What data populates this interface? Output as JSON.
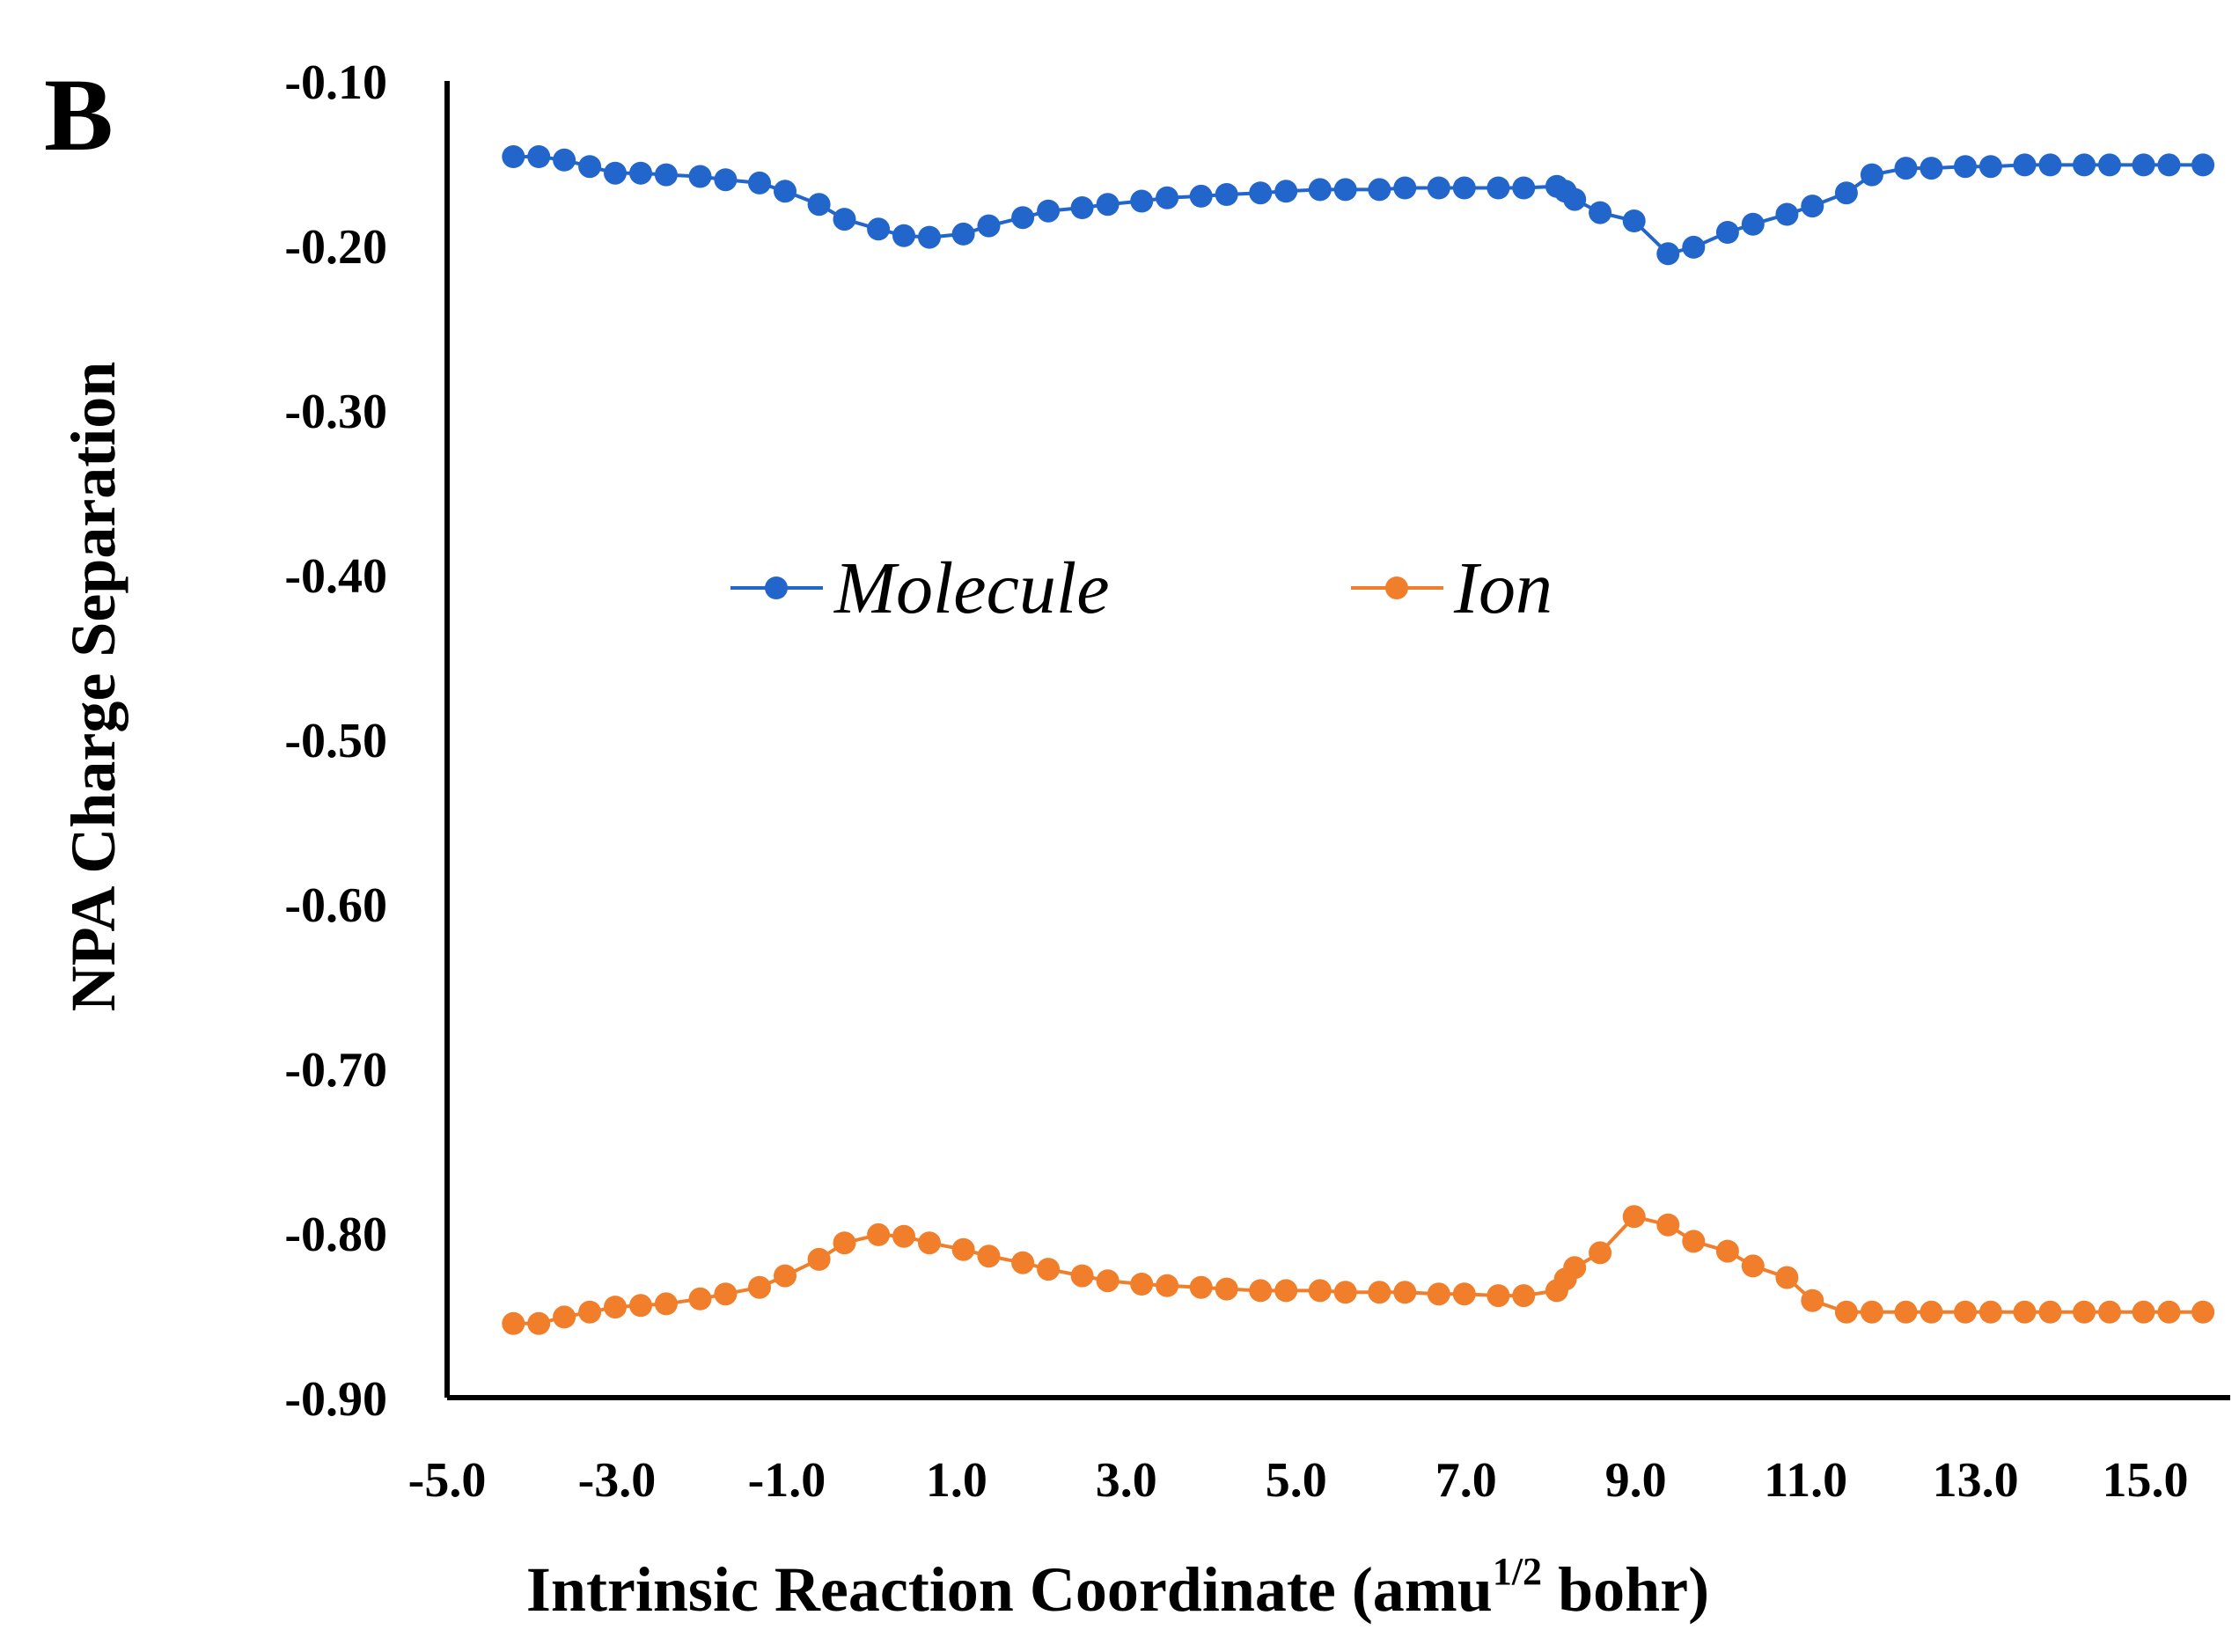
{
  "panel_label": "B",
  "colors": {
    "molecule": "#2266CC",
    "ion": "#F07E2A",
    "axis": "#000000"
  },
  "chart_data": {
    "type": "line",
    "title": "",
    "xlabel_main": "Intrinsic  Reaction Coordinate  (amu",
    "xlabel_sup": "1/2",
    "xlabel_tail": " bohr)",
    "ylabel": "NPA Charge Separation",
    "xlim": [
      -5.0,
      16.0
    ],
    "ylim": [
      -0.9,
      -0.1
    ],
    "x_ticks": [
      -5.0,
      -3.0,
      -1.0,
      1.0,
      3.0,
      5.0,
      7.0,
      9.0,
      11.0,
      13.0,
      15.0
    ],
    "x_tick_labels": [
      "-5.0",
      "-3.0",
      "-1.0",
      "1.0",
      "3.0",
      "5.0",
      "7.0",
      "9.0",
      "11.0",
      "13.0",
      "15.0"
    ],
    "y_ticks": [
      -0.1,
      -0.2,
      -0.3,
      -0.4,
      -0.5,
      -0.6,
      -0.7,
      -0.8,
      -0.9
    ],
    "y_tick_labels": [
      "-0.10",
      "-0.20",
      "-0.30",
      "-0.40",
      "-0.50",
      "-0.60",
      "-0.70",
      "-0.80",
      "-0.90"
    ],
    "legend_position": "center",
    "series": [
      {
        "name": "Molecule",
        "color": "#2266CC",
        "x": [
          -4.22,
          -3.92,
          -3.62,
          -3.32,
          -3.02,
          -2.72,
          -2.42,
          -2.02,
          -1.72,
          -1.32,
          -1.02,
          -0.62,
          -0.32,
          0.08,
          0.38,
          0.68,
          1.08,
          1.38,
          1.78,
          2.08,
          2.48,
          2.78,
          3.18,
          3.48,
          3.88,
          4.18,
          4.58,
          4.88,
          5.28,
          5.58,
          5.98,
          6.28,
          6.68,
          6.98,
          7.38,
          7.68,
          8.07,
          8.17,
          8.28,
          8.58,
          8.98,
          9.38,
          9.68,
          10.08,
          10.38,
          10.78,
          11.08,
          11.48,
          11.78,
          12.18,
          12.48,
          12.88,
          13.18,
          13.58,
          13.88,
          14.28,
          14.58,
          14.98,
          15.28,
          15.68
        ],
        "y": [
          -0.146,
          -0.146,
          -0.148,
          -0.152,
          -0.156,
          -0.156,
          -0.157,
          -0.158,
          -0.16,
          -0.162,
          -0.167,
          -0.175,
          -0.184,
          -0.19,
          -0.194,
          -0.195,
          -0.193,
          -0.188,
          -0.183,
          -0.179,
          -0.177,
          -0.175,
          -0.173,
          -0.171,
          -0.17,
          -0.169,
          -0.168,
          -0.167,
          -0.166,
          -0.166,
          -0.166,
          -0.165,
          -0.165,
          -0.165,
          -0.165,
          -0.165,
          -0.164,
          -0.167,
          -0.172,
          -0.18,
          -0.185,
          -0.205,
          -0.201,
          -0.192,
          -0.187,
          -0.181,
          -0.176,
          -0.168,
          -0.157,
          -0.153,
          -0.153,
          -0.152,
          -0.152,
          -0.151,
          -0.151,
          -0.151,
          -0.151,
          -0.151,
          -0.151,
          -0.151
        ]
      },
      {
        "name": "Ion",
        "color": "#F07E2A",
        "x": [
          -4.22,
          -3.92,
          -3.62,
          -3.32,
          -3.02,
          -2.72,
          -2.42,
          -2.02,
          -1.72,
          -1.32,
          -1.02,
          -0.62,
          -0.32,
          0.08,
          0.38,
          0.68,
          1.08,
          1.38,
          1.78,
          2.08,
          2.48,
          2.78,
          3.18,
          3.48,
          3.88,
          4.18,
          4.58,
          4.88,
          5.28,
          5.58,
          5.98,
          6.28,
          6.68,
          6.98,
          7.38,
          7.68,
          8.07,
          8.17,
          8.28,
          8.58,
          8.98,
          9.38,
          9.68,
          10.08,
          10.38,
          10.78,
          11.08,
          11.48,
          11.78,
          12.18,
          12.48,
          12.88,
          13.18,
          13.58,
          13.88,
          14.28,
          14.58,
          14.98,
          15.28,
          15.68
        ],
        "y": [
          -0.855,
          -0.855,
          -0.851,
          -0.848,
          -0.845,
          -0.844,
          -0.843,
          -0.84,
          -0.837,
          -0.833,
          -0.826,
          -0.816,
          -0.806,
          -0.801,
          -0.802,
          -0.806,
          -0.81,
          -0.814,
          -0.818,
          -0.822,
          -0.826,
          -0.829,
          -0.831,
          -0.832,
          -0.833,
          -0.834,
          -0.835,
          -0.835,
          -0.835,
          -0.836,
          -0.836,
          -0.836,
          -0.837,
          -0.837,
          -0.838,
          -0.838,
          -0.835,
          -0.828,
          -0.821,
          -0.812,
          -0.79,
          -0.795,
          -0.805,
          -0.811,
          -0.82,
          -0.827,
          -0.841,
          -0.848,
          -0.848,
          -0.848,
          -0.848,
          -0.848,
          -0.848,
          -0.848,
          -0.848,
          -0.848,
          -0.848,
          -0.848,
          -0.848,
          -0.848
        ]
      }
    ]
  }
}
